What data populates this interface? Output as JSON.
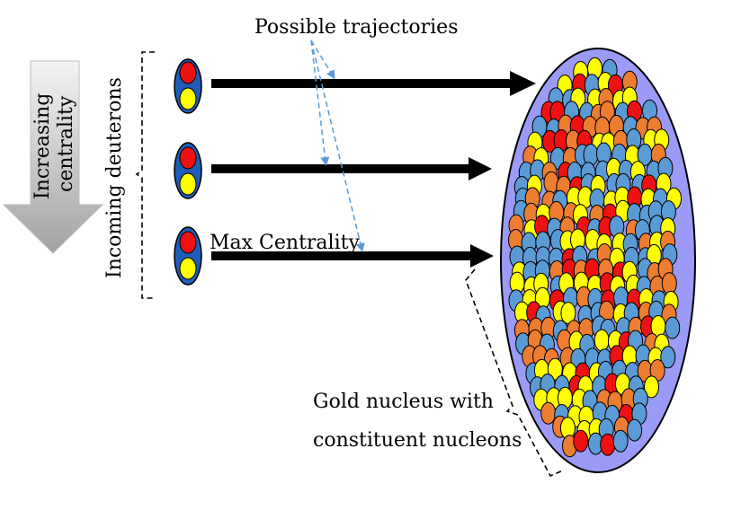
{
  "labels": {
    "increasing_line1": "Increasing",
    "increasing_line2": "centrality",
    "incoming": "Incoming deuterons",
    "trajectories": "Possible trajectories",
    "max_centrality": "Max Centrality",
    "gold_line1": "Gold nucleus with",
    "gold_line2": "constituent nucleons"
  },
  "colors": {
    "nucleus_fill": "#9b9bf7",
    "nucleon_red": "#ee1111",
    "nucleon_yellow": "#ffff00",
    "nucleon_orange": "#ed7d31",
    "nucleon_blue": "#5b9bd5",
    "deuteron_shell": "#1f5cb8",
    "trajectory_dash": "#5b9bd5",
    "gradient_arrow_top": "#f2f2f2",
    "gradient_arrow_bottom": "#a6a6a6"
  }
}
